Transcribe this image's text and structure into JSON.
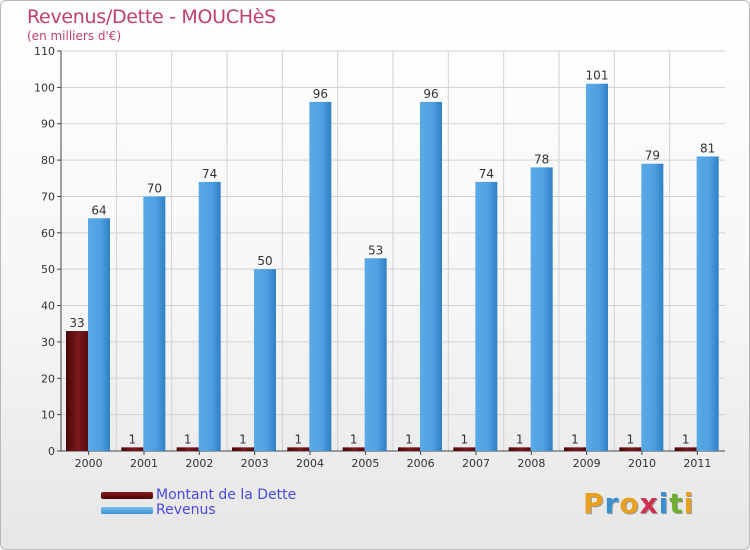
{
  "header": {
    "title": "Revenus/Dette - MOUCHèS",
    "subtitle": "(en milliers d'€)"
  },
  "legend": [
    {
      "label": "Montant de la Dette",
      "color": "#6a0c10"
    },
    {
      "label": "Revenus",
      "color": "#4d9fe0"
    }
  ],
  "logo": {
    "text": "Proxiti",
    "colors": [
      "#e8a020",
      "#3a8fd0",
      "#e8a020",
      "#d03050",
      "#3a8fd0",
      "#70b030",
      "#e8a020"
    ]
  },
  "chart_data": {
    "type": "bar",
    "title": "Revenus/Dette - MOUCHèS",
    "ylabel": "(en milliers d'€)",
    "xlabel": "",
    "ylim": [
      0,
      110
    ],
    "yticks": [
      0,
      10,
      20,
      30,
      40,
      50,
      60,
      70,
      80,
      90,
      100,
      110
    ],
    "grid": true,
    "legend_position": "bottom-left",
    "categories": [
      "2000",
      "2001",
      "2002",
      "2003",
      "2004",
      "2005",
      "2006",
      "2007",
      "2008",
      "2009",
      "2010",
      "2011"
    ],
    "series": [
      {
        "name": "Montant de la Dette",
        "color": "#6a0c10",
        "values": [
          33,
          1,
          1,
          1,
          1,
          1,
          1,
          1,
          1,
          1,
          1,
          1
        ]
      },
      {
        "name": "Revenus",
        "color": "#4d9fe0",
        "values": [
          64,
          70,
          74,
          50,
          96,
          53,
          96,
          74,
          78,
          101,
          79,
          81
        ]
      }
    ]
  }
}
